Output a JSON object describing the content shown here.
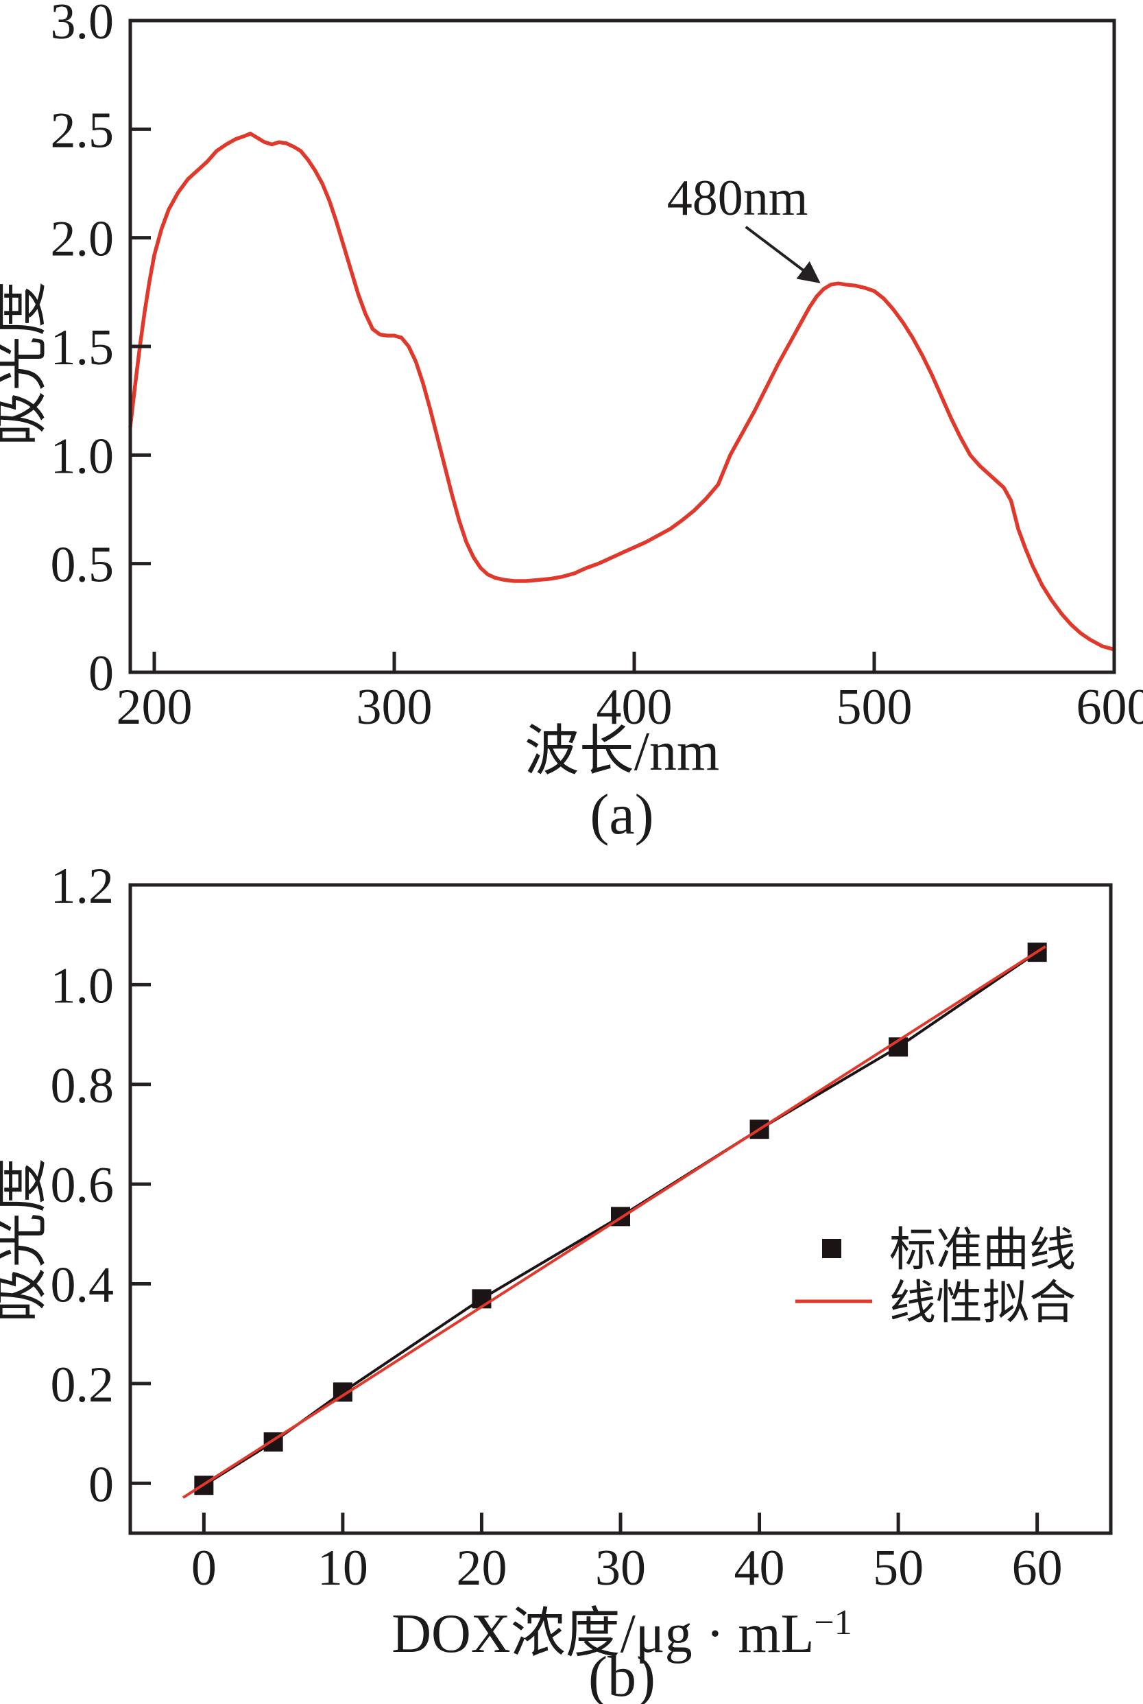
{
  "figure": {
    "background": "#ffffff",
    "caption_a": "(a)",
    "caption_b": "(b)"
  },
  "colors": {
    "curve_red": "#e0382b",
    "axis_black": "#241f20",
    "marker_black": "#1b1314"
  },
  "chart_data": [
    {
      "id": "a",
      "type": "line",
      "xlabel": "波长/nm",
      "ylabel": "吸光度",
      "xlim": [
        190,
        600
      ],
      "ylim": [
        0,
        3.0
      ],
      "xticks": [
        200,
        300,
        400,
        500,
        600
      ],
      "xtick_labels": [
        "200",
        "300",
        "400",
        "500",
        "600"
      ],
      "yticks": [
        0,
        0.5,
        1.0,
        1.5,
        2.0,
        2.5,
        3.0
      ],
      "ytick_labels": [
        "0",
        "0.5",
        "1.0",
        "1.5",
        "2.0",
        "2.5",
        "3.0"
      ],
      "grid": false,
      "legend_position": "none",
      "annotation": {
        "text": "480nm",
        "text_pos": [
          443,
          2.16
        ],
        "arrow_from": [
          446.5,
          2.05
        ],
        "arrow_to": [
          476.5,
          1.8
        ]
      },
      "series": [
        {
          "color": "#e0382b",
          "x": [
            190,
            192,
            194,
            196,
            198,
            200,
            203,
            206,
            210,
            214,
            218,
            222,
            226,
            230,
            234,
            238,
            240,
            243,
            246,
            249,
            252,
            255,
            258,
            261,
            264,
            267,
            270,
            273,
            276,
            279,
            282,
            285,
            288,
            291,
            294,
            297,
            300,
            303,
            306,
            309,
            312,
            315,
            318,
            321,
            324,
            327,
            330,
            333,
            336,
            339,
            342,
            346,
            350,
            355,
            360,
            365,
            370,
            375,
            380,
            385,
            390,
            395,
            400,
            405,
            410,
            415,
            420,
            425,
            430,
            435,
            440,
            445,
            450,
            455,
            460,
            465,
            470,
            473,
            476,
            479,
            482,
            485,
            488,
            492,
            496,
            500,
            504,
            508,
            512,
            516,
            520,
            524,
            528,
            532,
            536,
            540,
            544,
            548,
            551,
            554,
            557,
            560,
            563,
            566,
            570,
            574,
            578,
            582,
            586,
            590,
            595,
            600
          ],
          "y": [
            1.13,
            1.32,
            1.5,
            1.66,
            1.8,
            1.92,
            2.04,
            2.13,
            2.21,
            2.27,
            2.31,
            2.35,
            2.4,
            2.43,
            2.455,
            2.47,
            2.48,
            2.46,
            2.44,
            2.43,
            2.44,
            2.435,
            2.42,
            2.4,
            2.36,
            2.31,
            2.25,
            2.17,
            2.07,
            1.96,
            1.85,
            1.74,
            1.65,
            1.58,
            1.555,
            1.55,
            1.55,
            1.54,
            1.5,
            1.43,
            1.33,
            1.21,
            1.08,
            0.95,
            0.82,
            0.7,
            0.6,
            0.53,
            0.48,
            0.45,
            0.435,
            0.425,
            0.42,
            0.42,
            0.425,
            0.43,
            0.44,
            0.455,
            0.48,
            0.5,
            0.525,
            0.55,
            0.575,
            0.6,
            0.63,
            0.66,
            0.7,
            0.745,
            0.8,
            0.865,
            1.0,
            1.1,
            1.2,
            1.31,
            1.42,
            1.52,
            1.62,
            1.68,
            1.73,
            1.765,
            1.785,
            1.79,
            1.785,
            1.78,
            1.77,
            1.755,
            1.72,
            1.67,
            1.61,
            1.54,
            1.46,
            1.37,
            1.27,
            1.17,
            1.08,
            1.0,
            0.95,
            0.91,
            0.88,
            0.85,
            0.79,
            0.66,
            0.57,
            0.49,
            0.4,
            0.33,
            0.27,
            0.22,
            0.18,
            0.15,
            0.12,
            0.105
          ]
        }
      ]
    },
    {
      "id": "b",
      "type": "scatter",
      "xlabel": "DOX浓度/μg · mL⁻¹",
      "xlabel_main": "DOX浓度/μg · mL",
      "xlabel_sup": "−1",
      "ylabel": "吸光度",
      "xlim": [
        -5.3,
        65.3
      ],
      "ylim": [
        -0.1,
        1.2
      ],
      "xticks": [
        0,
        10,
        20,
        30,
        40,
        50,
        60
      ],
      "xtick_labels": [
        "0",
        "10",
        "20",
        "30",
        "40",
        "50",
        "60"
      ],
      "yticks": [
        0,
        0.2,
        0.4,
        0.6,
        0.8,
        1.0,
        1.2
      ],
      "ytick_labels": [
        "0",
        "0.2",
        "0.4",
        "0.6",
        "0.8",
        "1.0",
        "1.2"
      ],
      "grid": false,
      "legend": {
        "position": "inside-right",
        "entries": [
          {
            "label": "标准曲线",
            "marker": "square",
            "color": "#1b1314"
          },
          {
            "label": "线性拟合",
            "marker": "line",
            "color": "#e0382b"
          }
        ]
      },
      "series": [
        {
          "name": "标准曲线",
          "type": "scatter-line",
          "marker": "square",
          "color": "#1b1314",
          "x": [
            0,
            5,
            10,
            20,
            30,
            40,
            50,
            60
          ],
          "y": [
            -0.004,
            0.083,
            0.183,
            0.37,
            0.535,
            0.71,
            0.875,
            1.065
          ]
        },
        {
          "name": "线性拟合",
          "type": "fit-line",
          "color": "#e0382b",
          "slope": 0.0178,
          "intercept": -0.002,
          "x_range": [
            -1.5,
            60.6
          ]
        }
      ]
    }
  ]
}
